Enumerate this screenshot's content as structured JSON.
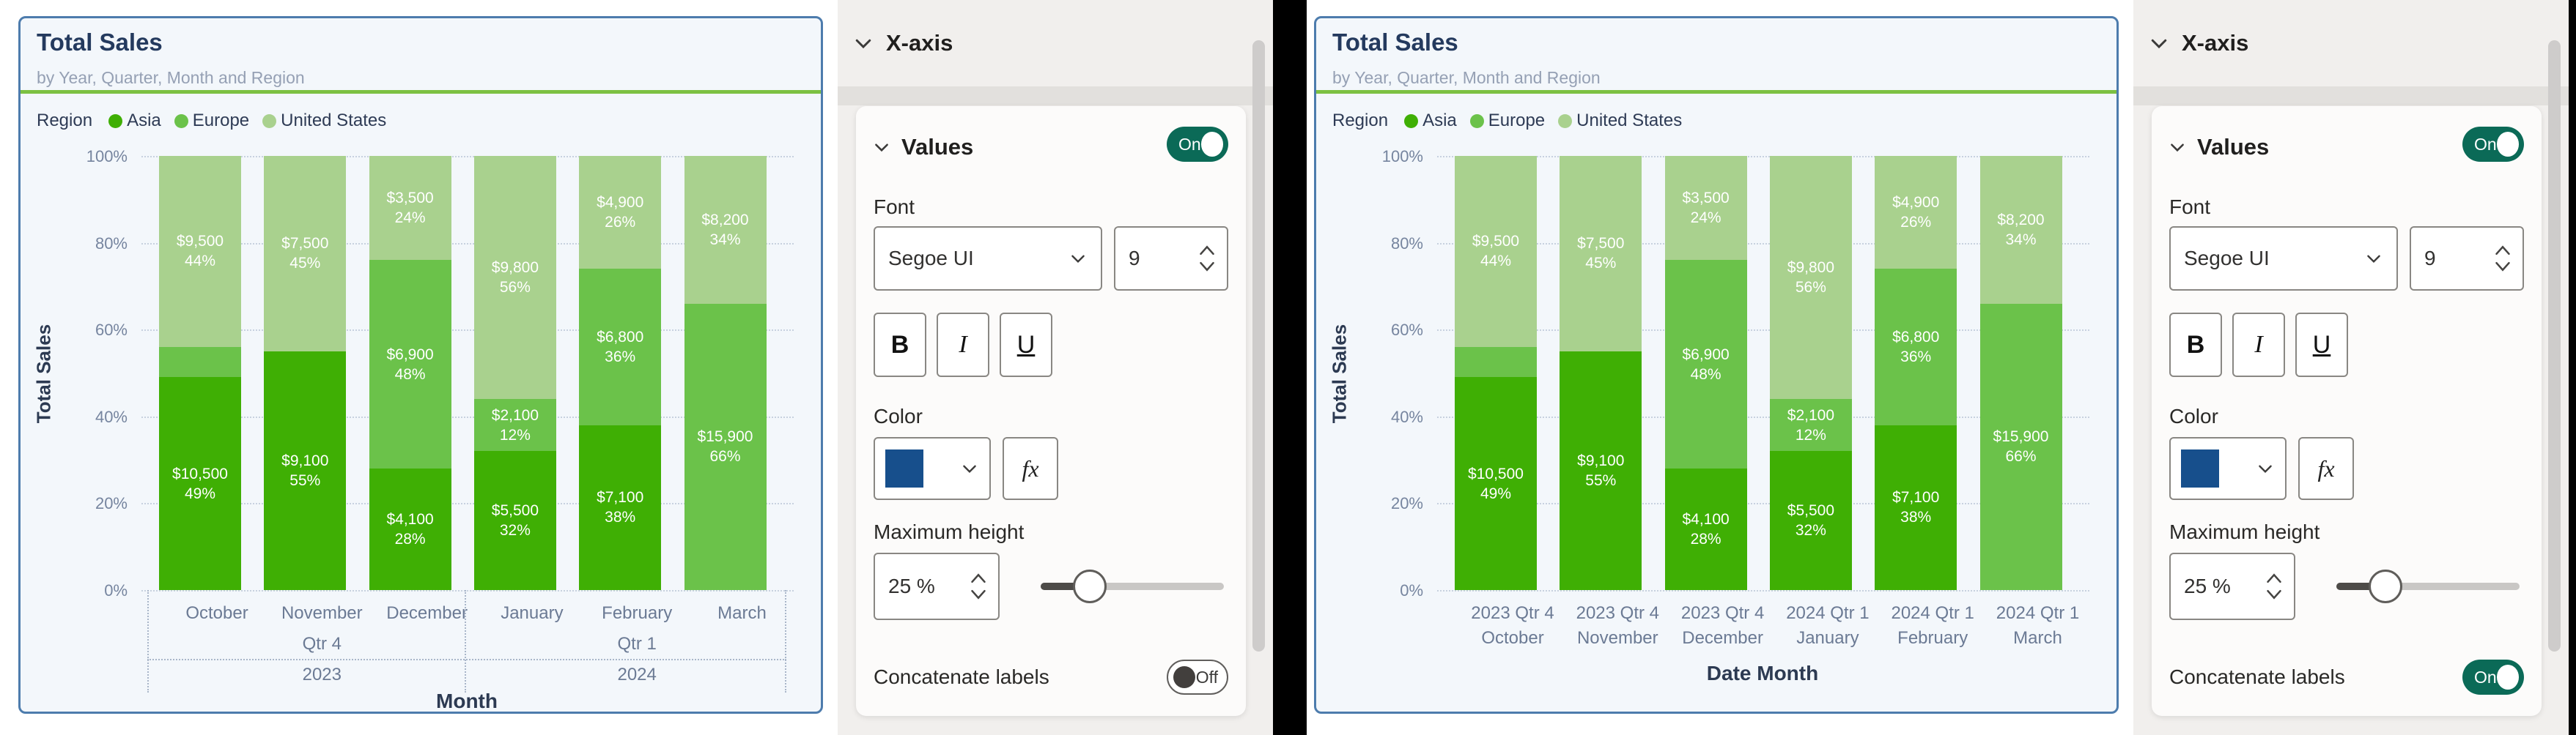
{
  "left_chart": {
    "title": "Total Sales",
    "subtitle": "by Year, Quarter, Month and Region",
    "legend_title": "Region",
    "y_axis_title": "Total Sales",
    "x_axis_title": "Month",
    "x_months": [
      "October",
      "November",
      "December",
      "January",
      "February",
      "March"
    ],
    "x_quarters": [
      "Qtr 4",
      "Qtr 1"
    ],
    "x_years": [
      "2023",
      "2024"
    ]
  },
  "right_chart": {
    "title": "Total Sales",
    "subtitle": "by Year, Quarter, Month and Region",
    "legend_title": "Region",
    "y_axis_title": "Total Sales",
    "x_axis_title": "Date Month",
    "x_labels": [
      {
        "top": "2023 Qtr 4",
        "bottom": "October"
      },
      {
        "top": "2023 Qtr 4",
        "bottom": "November"
      },
      {
        "top": "2023 Qtr 4",
        "bottom": "December"
      },
      {
        "top": "2024 Qtr 1",
        "bottom": "January"
      },
      {
        "top": "2024 Qtr 1",
        "bottom": "February"
      },
      {
        "top": "2024 Qtr 1",
        "bottom": "March"
      }
    ]
  },
  "legend": [
    {
      "label": "Asia",
      "color": "#3faf04"
    },
    {
      "label": "Europe",
      "color": "#6bc24a"
    },
    {
      "label": "United States",
      "color": "#a9d18e"
    }
  ],
  "y_ticks": [
    "100%",
    "80%",
    "60%",
    "40%",
    "20%",
    "0%"
  ],
  "chart_data": {
    "type": "bar",
    "stacked": "100%",
    "title": "Total Sales",
    "xlabel_left": "Month",
    "xlabel_right": "Date Month",
    "ylabel": "Total Sales",
    "ylim": [
      "0%",
      "100%"
    ],
    "grid": "dotted horizontal",
    "legend_position": "top",
    "categories": [
      "October",
      "November",
      "December",
      "January",
      "February",
      "March"
    ],
    "series": [
      {
        "name": "Asia",
        "color": "#3faf04",
        "values": [
          10500,
          9100,
          4100,
          5500,
          7100,
          null
        ],
        "percents": [
          49,
          55,
          28,
          32,
          38,
          0
        ],
        "labels": [
          "$10,500",
          "$9,100",
          "$4,100",
          "$5,500",
          "$7,100",
          null
        ]
      },
      {
        "name": "Europe",
        "color": "#6bc24a",
        "values": [
          null,
          null,
          6900,
          2100,
          6800,
          15900
        ],
        "percents": [
          7,
          0,
          48,
          12,
          36,
          66
        ],
        "labels": [
          null,
          null,
          "$6,900",
          "$2,100",
          "$6,800",
          "$15,900"
        ]
      },
      {
        "name": "United States",
        "color": "#a9d18e",
        "values": [
          9500,
          7500,
          3500,
          9800,
          4900,
          8200
        ],
        "percents": [
          44,
          45,
          24,
          56,
          26,
          34
        ],
        "labels": [
          "$9,500",
          "$7,500",
          "$3,500",
          "$9,800",
          "$4,900",
          "$8,200"
        ]
      }
    ]
  },
  "left_panel": {
    "header": "X-axis",
    "values_label": "Values",
    "values_toggle": "On",
    "font_label": "Font",
    "font_family": "Segoe UI",
    "font_size": "9",
    "bold": "B",
    "italic": "I",
    "underline": "U",
    "color_label": "Color",
    "swatch_color": "#174f8c",
    "fx_label": "fx",
    "max_height_label": "Maximum height",
    "max_height_value": "25 %",
    "concat_label": "Concatenate labels",
    "concat_toggle": "Off"
  },
  "right_panel": {
    "header": "X-axis",
    "values_label": "Values",
    "values_toggle": "On",
    "font_label": "Font",
    "font_family": "Segoe UI",
    "font_size": "9",
    "bold": "B",
    "italic": "I",
    "underline": "U",
    "color_label": "Color",
    "swatch_color": "#174f8c",
    "fx_label": "fx",
    "max_height_label": "Maximum height",
    "max_height_value": "25 %",
    "concat_label": "Concatenate labels",
    "concat_toggle": "On"
  }
}
